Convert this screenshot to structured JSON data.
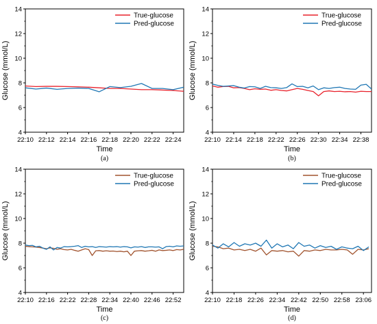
{
  "chart_data": [
    {
      "type": "line",
      "caption": "(a)",
      "xlabel": "Time",
      "ylabel": "Glucose (mmol/L)",
      "ylim": [
        4,
        14
      ],
      "yticks": [
        "4",
        "6",
        "8",
        "10",
        "12",
        "14"
      ],
      "xlim": [
        "22:10",
        "22:25"
      ],
      "xticks": [
        "22:10",
        "22:12",
        "22:14",
        "22:16",
        "22:18",
        "22:20",
        "22:22",
        "22:24"
      ],
      "legend": "top-right",
      "series": [
        {
          "name": "True-glucose",
          "color": "#e8202a",
          "x": [
            "22:10",
            "22:11",
            "22:12",
            "22:13",
            "22:14",
            "22:15",
            "22:16",
            "22:17",
            "22:18",
            "22:19",
            "22:20",
            "22:21",
            "22:22",
            "22:23",
            "22:24",
            "22:25"
          ],
          "values": [
            7.75,
            7.7,
            7.72,
            7.72,
            7.7,
            7.68,
            7.65,
            7.6,
            7.55,
            7.55,
            7.5,
            7.45,
            7.45,
            7.42,
            7.38,
            7.32
          ]
        },
        {
          "name": "Pred-glucose",
          "color": "#1f77b4",
          "x": [
            "22:10",
            "22:11",
            "22:12",
            "22:13",
            "22:14",
            "22:15",
            "22:16",
            "22:17",
            "22:18",
            "22:19",
            "22:20",
            "22:21",
            "22:22",
            "22:23",
            "22:24",
            "22:25"
          ],
          "values": [
            7.6,
            7.5,
            7.58,
            7.48,
            7.55,
            7.58,
            7.55,
            7.28,
            7.7,
            7.62,
            7.72,
            7.95,
            7.55,
            7.55,
            7.45,
            7.65
          ]
        }
      ]
    },
    {
      "type": "line",
      "caption": "(b)",
      "xlabel": "Time",
      "ylabel": "Glucose (mmol/L)",
      "ylim": [
        4,
        14
      ],
      "yticks": [
        "4",
        "6",
        "8",
        "10",
        "12",
        "14"
      ],
      "xlim": [
        "22:10",
        "22:40"
      ],
      "xticks": [
        "22:10",
        "22:14",
        "22:18",
        "22:22",
        "22:26",
        "22:30",
        "22:34",
        "22:38"
      ],
      "legend": "top-right",
      "series": [
        {
          "name": "True-glucose",
          "color": "#e8202a",
          "x": [
            "22:10",
            "22:11",
            "22:12",
            "22:13",
            "22:14",
            "22:15",
            "22:16",
            "22:17",
            "22:18",
            "22:19",
            "22:20",
            "22:21",
            "22:22",
            "22:23",
            "22:24",
            "22:25",
            "22:26",
            "22:27",
            "22:28",
            "22:29",
            "22:30",
            "22:31",
            "22:32",
            "22:33",
            "22:34",
            "22:35",
            "22:36",
            "22:37",
            "22:38",
            "22:39",
            "22:40"
          ],
          "values": [
            7.75,
            7.65,
            7.7,
            7.72,
            7.6,
            7.62,
            7.55,
            7.45,
            7.52,
            7.48,
            7.5,
            7.4,
            7.45,
            7.38,
            7.35,
            7.45,
            7.55,
            7.48,
            7.38,
            7.3,
            6.95,
            7.3,
            7.35,
            7.3,
            7.32,
            7.28,
            7.3,
            7.25,
            7.32,
            7.3,
            7.3
          ]
        },
        {
          "name": "Pred-glucose",
          "color": "#1f77b4",
          "x": [
            "22:10",
            "22:11",
            "22:12",
            "22:13",
            "22:14",
            "22:15",
            "22:16",
            "22:17",
            "22:18",
            "22:19",
            "22:20",
            "22:21",
            "22:22",
            "22:23",
            "22:24",
            "22:25",
            "22:26",
            "22:27",
            "22:28",
            "22:29",
            "22:30",
            "22:31",
            "22:32",
            "22:33",
            "22:34",
            "22:35",
            "22:36",
            "22:37",
            "22:38",
            "22:39",
            "22:40"
          ],
          "values": [
            7.9,
            7.8,
            7.72,
            7.75,
            7.78,
            7.65,
            7.58,
            7.7,
            7.68,
            7.55,
            7.72,
            7.62,
            7.6,
            7.55,
            7.62,
            7.92,
            7.7,
            7.72,
            7.6,
            7.75,
            7.45,
            7.6,
            7.55,
            7.62,
            7.65,
            7.55,
            7.5,
            7.48,
            7.82,
            7.88,
            7.5
          ]
        }
      ]
    },
    {
      "type": "line",
      "caption": "(c)",
      "xlabel": "Time",
      "ylabel": "Glucose (mmol/L)",
      "ylim": [
        4,
        14
      ],
      "yticks": [
        "4",
        "6",
        "8",
        "10",
        "12",
        "14"
      ],
      "xlim": [
        "22:10",
        "22:55"
      ],
      "xticks": [
        "22:10",
        "22:16",
        "22:22",
        "22:28",
        "22:34",
        "22:40",
        "22:46",
        "22:52"
      ],
      "legend": "top-right",
      "series": [
        {
          "name": "True-glucose",
          "color": "#a0522d",
          "x": [
            "22:10",
            "22:11",
            "22:12",
            "22:13",
            "22:14",
            "22:15",
            "22:16",
            "22:17",
            "22:18",
            "22:19",
            "22:20",
            "22:21",
            "22:22",
            "22:23",
            "22:24",
            "22:25",
            "22:26",
            "22:27",
            "22:28",
            "22:29",
            "22:30",
            "22:31",
            "22:32",
            "22:33",
            "22:34",
            "22:35",
            "22:36",
            "22:37",
            "22:38",
            "22:39",
            "22:40",
            "22:41",
            "22:42",
            "22:43",
            "22:44",
            "22:45",
            "22:46",
            "22:47",
            "22:48",
            "22:49",
            "22:50",
            "22:51",
            "22:52",
            "22:53",
            "22:54",
            "22:55"
          ],
          "values": [
            7.75,
            7.72,
            7.7,
            7.68,
            7.65,
            7.6,
            7.55,
            7.62,
            7.58,
            7.5,
            7.55,
            7.48,
            7.45,
            7.5,
            7.42,
            7.35,
            7.45,
            7.55,
            7.48,
            7.0,
            7.38,
            7.4,
            7.35,
            7.38,
            7.35,
            7.36,
            7.32,
            7.35,
            7.3,
            7.35,
            7.0,
            7.35,
            7.38,
            7.4,
            7.35,
            7.38,
            7.42,
            7.35,
            7.45,
            7.4,
            7.42,
            7.45,
            7.4,
            7.48,
            7.45,
            7.5
          ]
        },
        {
          "name": "Pred-glucose",
          "color": "#1f77b4",
          "x": [
            "22:10",
            "22:11",
            "22:12",
            "22:13",
            "22:14",
            "22:15",
            "22:16",
            "22:17",
            "22:18",
            "22:19",
            "22:20",
            "22:21",
            "22:22",
            "22:23",
            "22:24",
            "22:25",
            "22:26",
            "22:27",
            "22:28",
            "22:29",
            "22:30",
            "22:31",
            "22:32",
            "22:33",
            "22:34",
            "22:35",
            "22:36",
            "22:37",
            "22:38",
            "22:39",
            "22:40",
            "22:41",
            "22:42",
            "22:43",
            "22:44",
            "22:45",
            "22:46",
            "22:47",
            "22:48",
            "22:49",
            "22:50",
            "22:51",
            "22:52",
            "22:53",
            "22:54",
            "22:55"
          ],
          "values": [
            7.85,
            7.8,
            7.82,
            7.7,
            7.75,
            7.6,
            7.5,
            7.7,
            7.45,
            7.65,
            7.6,
            7.72,
            7.7,
            7.72,
            7.75,
            7.8,
            7.65,
            7.75,
            7.7,
            7.72,
            7.65,
            7.72,
            7.7,
            7.68,
            7.72,
            7.7,
            7.72,
            7.68,
            7.72,
            7.7,
            7.62,
            7.7,
            7.68,
            7.72,
            7.65,
            7.7,
            7.7,
            7.68,
            7.7,
            7.55,
            7.72,
            7.75,
            7.7,
            7.78,
            7.75,
            7.78
          ]
        }
      ]
    },
    {
      "type": "line",
      "caption": "(d)",
      "xlabel": "Time",
      "ylabel": "Glucose (mmol/L)",
      "ylim": [
        4,
        14
      ],
      "yticks": [
        "4",
        "6",
        "8",
        "10",
        "12",
        "14"
      ],
      "xlim": [
        "22:10",
        "23:09"
      ],
      "xticks": [
        "22:10",
        "22:18",
        "22:26",
        "22:34",
        "22:42",
        "22:50",
        "22:58",
        "23:06"
      ],
      "legend": "top-right",
      "series": [
        {
          "name": "True-glucose",
          "color": "#a0522d",
          "x": [
            "22:10",
            "22:12",
            "22:14",
            "22:16",
            "22:18",
            "22:20",
            "22:22",
            "22:24",
            "22:26",
            "22:28",
            "22:30",
            "22:32",
            "22:34",
            "22:36",
            "22:38",
            "22:40",
            "22:42",
            "22:44",
            "22:46",
            "22:48",
            "22:50",
            "22:52",
            "22:54",
            "22:56",
            "22:58",
            "23:00",
            "23:02",
            "23:04",
            "23:06",
            "23:08"
          ],
          "values": [
            7.75,
            7.7,
            7.55,
            7.6,
            7.45,
            7.5,
            7.4,
            7.5,
            7.35,
            7.6,
            7.05,
            7.4,
            7.35,
            7.4,
            7.3,
            7.35,
            6.95,
            7.4,
            7.35,
            7.45,
            7.4,
            7.5,
            7.45,
            7.45,
            7.5,
            7.45,
            7.1,
            7.5,
            7.45,
            7.55
          ]
        },
        {
          "name": "Pred-glucose",
          "color": "#1f77b4",
          "x": [
            "22:10",
            "22:12",
            "22:14",
            "22:16",
            "22:18",
            "22:20",
            "22:22",
            "22:24",
            "22:26",
            "22:28",
            "22:30",
            "22:32",
            "22:34",
            "22:36",
            "22:38",
            "22:40",
            "22:42",
            "22:44",
            "22:46",
            "22:48",
            "22:50",
            "22:52",
            "22:54",
            "22:56",
            "22:58",
            "23:00",
            "23:02",
            "23:04",
            "23:06",
            "23:08"
          ],
          "values": [
            7.85,
            7.6,
            7.95,
            7.7,
            8.05,
            7.75,
            7.95,
            7.85,
            8.0,
            7.75,
            8.25,
            7.6,
            7.95,
            7.7,
            7.85,
            7.55,
            8.05,
            7.75,
            7.85,
            7.6,
            7.8,
            7.65,
            7.75,
            7.5,
            7.7,
            7.6,
            7.55,
            7.75,
            7.4,
            7.7
          ]
        }
      ]
    }
  ]
}
